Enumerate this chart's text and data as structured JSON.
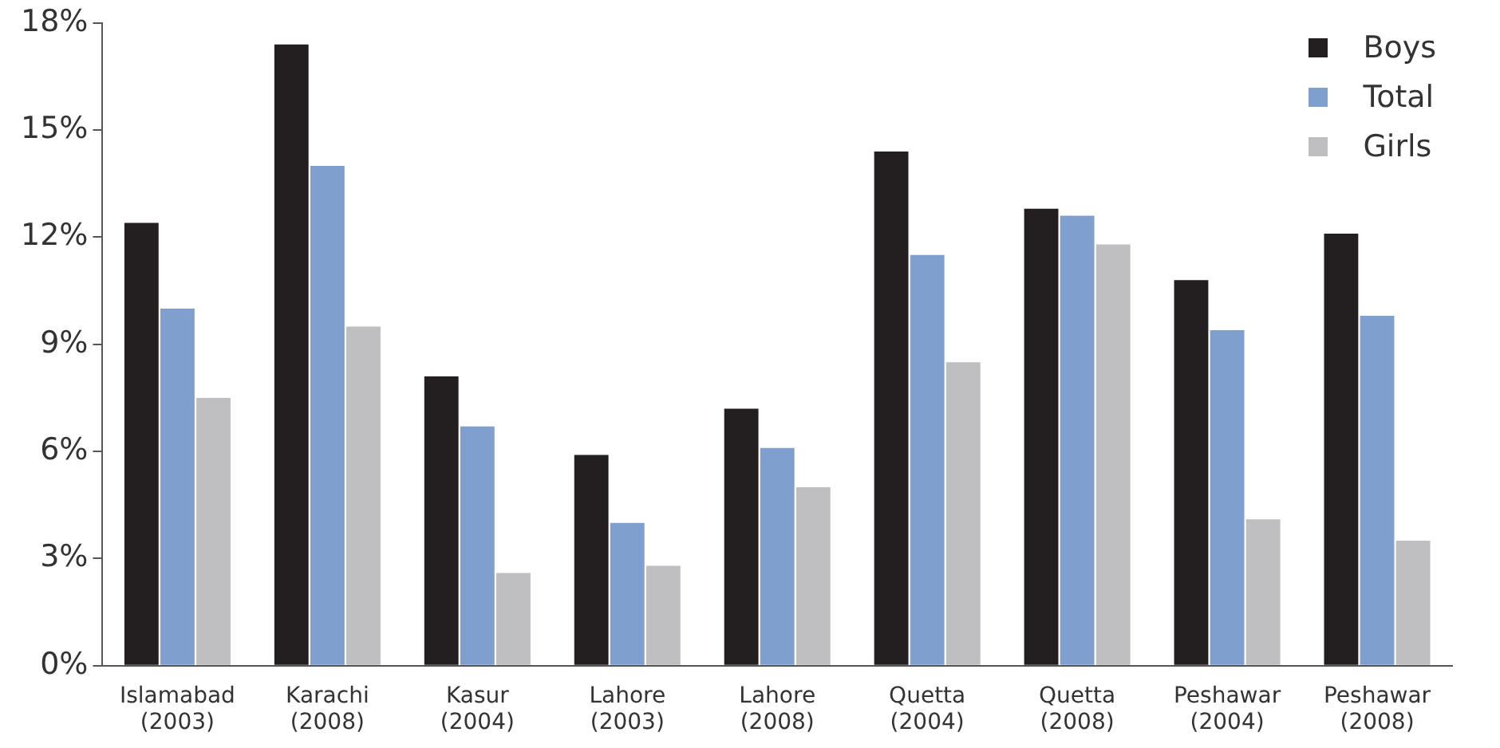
{
  "chart_data": {
    "type": "bar",
    "categories": [
      "Islamabad (2003)",
      "Karachi (2008)",
      "Kasur (2004)",
      "Lahore (2003)",
      "Lahore (2008)",
      "Quetta (2004)",
      "Quetta (2008)",
      "Peshawar (2004)",
      "Peshawar (2008)"
    ],
    "series": [
      {
        "name": "Boys",
        "color": "#231f20",
        "values": [
          12.4,
          17.4,
          8.1,
          5.9,
          7.2,
          14.4,
          12.8,
          10.8,
          12.1
        ]
      },
      {
        "name": "Total",
        "color": "#7f9fcf",
        "values": [
          10.0,
          14.0,
          6.7,
          4.0,
          6.1,
          11.5,
          12.6,
          9.4,
          9.8
        ]
      },
      {
        "name": "Girls",
        "color": "#bfbfc1",
        "values": [
          7.5,
          9.5,
          2.6,
          2.8,
          5.0,
          8.5,
          11.8,
          4.1,
          3.5
        ]
      }
    ],
    "ylim": [
      0,
      18
    ],
    "yticks": [
      {
        "value": 0,
        "label": "0%"
      },
      {
        "value": 3,
        "label": "3%"
      },
      {
        "value": 6,
        "label": "6%"
      },
      {
        "value": 9,
        "label": "9%"
      },
      {
        "value": 12,
        "label": "12%"
      },
      {
        "value": 15,
        "label": "15%"
      },
      {
        "value": 18,
        "label": "18%"
      }
    ],
    "grid": false,
    "legend": "top right"
  }
}
